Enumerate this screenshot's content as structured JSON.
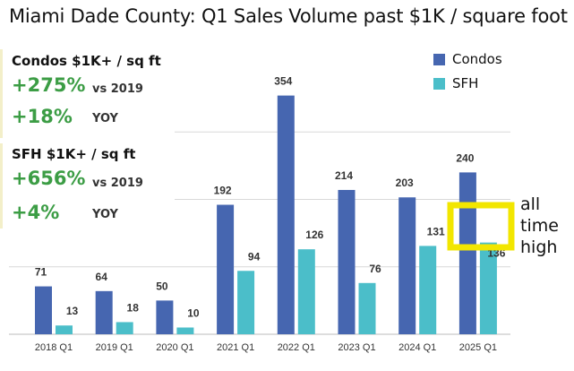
{
  "title": "Miami Dade County: Q1 Sales Volume past $1K / square foot",
  "stats": {
    "condos": {
      "heading": "Condos $1K+ / sq ft",
      "vs2019_value": "+275%",
      "vs2019_label": "vs 2019",
      "yoy_value": "+18%",
      "yoy_label": "YOY"
    },
    "sfh": {
      "heading": "SFH $1K+ / sq ft",
      "vs2019_value": "+656%",
      "vs2019_label": "vs 2019",
      "yoy_value": "+4%",
      "yoy_label": "YOY"
    }
  },
  "callout": {
    "line1": "all",
    "line2": "time",
    "line3": "high",
    "box_color": "#f2e600"
  },
  "colors": {
    "condos": "#4666b0",
    "sfh": "#4bbec9",
    "grid": "#d9d9d9",
    "stat_green": "#3c9d45"
  },
  "chart_data": {
    "type": "bar",
    "categories": [
      "2018 Q1",
      "2019 Q1",
      "2020 Q1",
      "2021 Q1",
      "2022 Q1",
      "2023 Q1",
      "2024 Q1",
      "2025 Q1"
    ],
    "series": [
      {
        "name": "Condos",
        "values": [
          71,
          64,
          50,
          192,
          354,
          214,
          203,
          240
        ]
      },
      {
        "name": "SFH",
        "values": [
          13,
          18,
          10,
          94,
          126,
          76,
          131,
          136
        ]
      }
    ],
    "ylim": [
      0,
      400
    ],
    "grid": true,
    "legend_position": "top-right"
  }
}
